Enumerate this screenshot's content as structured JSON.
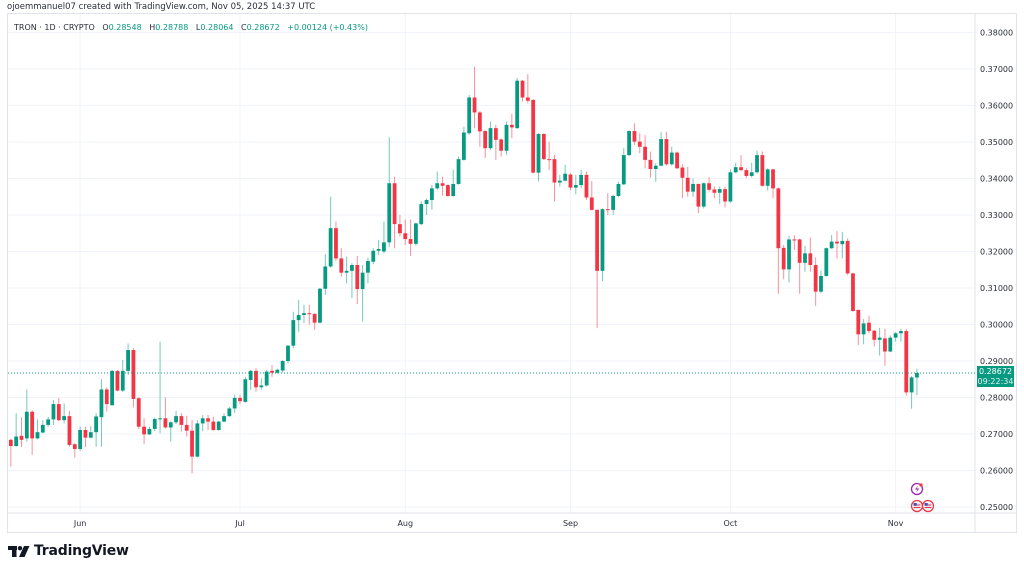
{
  "credit": "ojoemmanuel07 created with TradingView.com, Nov 05, 2025 14:37 UTC",
  "legend": {
    "symbol": "TRON · 1D · CRYPTO",
    "o_label": "O",
    "o_value": "0.28548",
    "h_label": "H",
    "h_value": "0.28788",
    "l_label": "L",
    "l_value": "0.28064",
    "c_label": "C",
    "c_value": "0.28672",
    "change": "+0.00124 (+0.43%)"
  },
  "last_price": {
    "price": "0.28672",
    "countdown": "09:22:34"
  },
  "logo_text": "TradingView",
  "icons": [
    "lightning-event-icon",
    "us-flag-event-icon",
    "us-flag-event-icon"
  ],
  "colors": {
    "up": "#089981",
    "down": "#F23645",
    "grid": "#f0f3fa",
    "event_purple": "#9c27b0",
    "event_red": "#F23645"
  },
  "chart_data": {
    "type": "candlestick",
    "symbol": "TRON",
    "interval": "1D",
    "grid": true,
    "ylim": [
      0.25,
      0.38
    ],
    "y_ticks": [
      "0.38000",
      "0.37000",
      "0.36000",
      "0.35000",
      "0.34000",
      "0.33000",
      "0.32000",
      "0.31000",
      "0.30000",
      "0.29000",
      "0.28000",
      "0.27000",
      "0.26000",
      "0.25000"
    ],
    "x_ticks": [
      {
        "label": "Jun",
        "date": "2025-06-01"
      },
      {
        "label": "Jul",
        "date": "2025-07-01"
      },
      {
        "label": "Aug",
        "date": "2025-08-01"
      },
      {
        "label": "Sep",
        "date": "2025-09-01"
      },
      {
        "label": "Oct",
        "date": "2025-10-01"
      },
      {
        "label": "Nov",
        "date": "2025-11-01"
      }
    ],
    "candle_fields": [
      "date",
      "open",
      "high",
      "low",
      "close"
    ],
    "candles": [
      [
        "2025-05-18",
        0.2697,
        0.2702,
        0.268,
        0.2684
      ],
      [
        "2025-05-19",
        0.2684,
        0.2687,
        0.2611,
        0.2667
      ],
      [
        "2025-05-20",
        0.2667,
        0.2757,
        0.2665,
        0.2693
      ],
      [
        "2025-05-21",
        0.2695,
        0.2746,
        0.2664,
        0.2684
      ],
      [
        "2025-05-22",
        0.2688,
        0.2822,
        0.2679,
        0.2761
      ],
      [
        "2025-05-23",
        0.2761,
        0.2765,
        0.2643,
        0.2688
      ],
      [
        "2025-05-24",
        0.2688,
        0.274,
        0.2685,
        0.2705
      ],
      [
        "2025-05-25",
        0.2704,
        0.2738,
        0.2702,
        0.2725
      ],
      [
        "2025-05-26",
        0.2725,
        0.2747,
        0.272,
        0.274
      ],
      [
        "2025-05-27",
        0.274,
        0.2793,
        0.2725,
        0.2782
      ],
      [
        "2025-05-28",
        0.2782,
        0.2799,
        0.2735,
        0.2738
      ],
      [
        "2025-05-29",
        0.2738,
        0.2784,
        0.2729,
        0.2749
      ],
      [
        "2025-05-30",
        0.2749,
        0.2763,
        0.2665,
        0.267
      ],
      [
        "2025-05-31",
        0.2672,
        0.2675,
        0.2635,
        0.2659
      ],
      [
        "2025-06-01",
        0.2659,
        0.272,
        0.2654,
        0.2711
      ],
      [
        "2025-06-02",
        0.2711,
        0.272,
        0.2664,
        0.269
      ],
      [
        "2025-06-03",
        0.269,
        0.2722,
        0.2688,
        0.2705
      ],
      [
        "2025-06-04",
        0.2705,
        0.2757,
        0.2665,
        0.2748
      ],
      [
        "2025-06-05",
        0.2746,
        0.285,
        0.2665,
        0.2822
      ],
      [
        "2025-06-06",
        0.2822,
        0.2828,
        0.2761,
        0.2782
      ],
      [
        "2025-06-07",
        0.2779,
        0.2875,
        0.2777,
        0.2873
      ],
      [
        "2025-06-08",
        0.2873,
        0.2875,
        0.2817,
        0.2819
      ],
      [
        "2025-06-09",
        0.2819,
        0.2903,
        0.2815,
        0.2873
      ],
      [
        "2025-06-10",
        0.2873,
        0.2948,
        0.2862,
        0.293
      ],
      [
        "2025-06-11",
        0.293,
        0.2935,
        0.2773,
        0.2796
      ],
      [
        "2025-06-12",
        0.2798,
        0.2801,
        0.2713,
        0.272
      ],
      [
        "2025-06-13",
        0.272,
        0.2743,
        0.2673,
        0.2699
      ],
      [
        "2025-06-14",
        0.2699,
        0.272,
        0.2697,
        0.2714
      ],
      [
        "2025-06-15",
        0.2714,
        0.2745,
        0.2708,
        0.2741
      ],
      [
        "2025-06-16",
        0.2741,
        0.2953,
        0.2702,
        0.2743
      ],
      [
        "2025-06-17",
        0.2743,
        0.28,
        0.2715,
        0.2718
      ],
      [
        "2025-06-18",
        0.2718,
        0.2735,
        0.2679,
        0.2732
      ],
      [
        "2025-06-19",
        0.2732,
        0.2763,
        0.2727,
        0.2749
      ],
      [
        "2025-06-20",
        0.2749,
        0.2757,
        0.2707,
        0.2725
      ],
      [
        "2025-06-21",
        0.2725,
        0.275,
        0.2693,
        0.2709
      ],
      [
        "2025-06-22",
        0.2709,
        0.2738,
        0.2592,
        0.2638
      ],
      [
        "2025-06-23",
        0.2638,
        0.2738,
        0.2636,
        0.2729
      ],
      [
        "2025-06-24",
        0.2729,
        0.2752,
        0.2708,
        0.2743
      ],
      [
        "2025-06-25",
        0.2743,
        0.2752,
        0.2711,
        0.2734
      ],
      [
        "2025-06-26",
        0.2734,
        0.2747,
        0.2709,
        0.2711
      ],
      [
        "2025-06-27",
        0.2711,
        0.2736,
        0.2709,
        0.2734
      ],
      [
        "2025-06-28",
        0.2734,
        0.2757,
        0.2732,
        0.2749
      ],
      [
        "2025-06-29",
        0.2749,
        0.2774,
        0.2747,
        0.277
      ],
      [
        "2025-06-30",
        0.277,
        0.2808,
        0.2758,
        0.2799
      ],
      [
        "2025-07-01",
        0.2799,
        0.2807,
        0.2782,
        0.279
      ],
      [
        "2025-07-02",
        0.2788,
        0.2857,
        0.2786,
        0.285
      ],
      [
        "2025-07-03",
        0.2848,
        0.2876,
        0.2821,
        0.2873
      ],
      [
        "2025-07-04",
        0.2873,
        0.288,
        0.2816,
        0.2828
      ],
      [
        "2025-07-05",
        0.2828,
        0.2853,
        0.2821,
        0.2833
      ],
      [
        "2025-07-06",
        0.2833,
        0.2876,
        0.283,
        0.2871
      ],
      [
        "2025-07-07",
        0.2873,
        0.2889,
        0.2857,
        0.2868
      ],
      [
        "2025-07-08",
        0.2868,
        0.2879,
        0.2866,
        0.2876
      ],
      [
        "2025-07-09",
        0.2874,
        0.2902,
        0.2868,
        0.29
      ],
      [
        "2025-07-10",
        0.29,
        0.2944,
        0.2894,
        0.2942
      ],
      [
        "2025-07-11",
        0.2942,
        0.3035,
        0.2935,
        0.3012
      ],
      [
        "2025-07-12",
        0.3012,
        0.3067,
        0.298,
        0.3026
      ],
      [
        "2025-07-13",
        0.3026,
        0.3054,
        0.3004,
        0.3031
      ],
      [
        "2025-07-14",
        0.3031,
        0.3054,
        0.3,
        0.3029
      ],
      [
        "2025-07-15",
        0.3029,
        0.3031,
        0.2985,
        0.3005
      ],
      [
        "2025-07-16",
        0.3005,
        0.31,
        0.3003,
        0.3098
      ],
      [
        "2025-07-17",
        0.3098,
        0.3193,
        0.3081,
        0.3159
      ],
      [
        "2025-07-18",
        0.3159,
        0.335,
        0.3155,
        0.3264
      ],
      [
        "2025-07-19",
        0.3264,
        0.3282,
        0.3174,
        0.3181
      ],
      [
        "2025-07-20",
        0.3181,
        0.3209,
        0.3131,
        0.3142
      ],
      [
        "2025-07-21",
        0.3142,
        0.3186,
        0.3113,
        0.3147
      ],
      [
        "2025-07-22",
        0.3147,
        0.3168,
        0.3072,
        0.3163
      ],
      [
        "2025-07-23",
        0.3163,
        0.3188,
        0.3056,
        0.3097
      ],
      [
        "2025-07-24",
        0.3097,
        0.3163,
        0.3008,
        0.3142
      ],
      [
        "2025-07-25",
        0.3142,
        0.3183,
        0.3113,
        0.3174
      ],
      [
        "2025-07-26",
        0.3172,
        0.3209,
        0.3165,
        0.3202
      ],
      [
        "2025-07-27",
        0.3202,
        0.3232,
        0.3191,
        0.3207
      ],
      [
        "2025-07-28",
        0.32,
        0.3282,
        0.3195,
        0.3225
      ],
      [
        "2025-07-29",
        0.3225,
        0.3513,
        0.3213,
        0.3387
      ],
      [
        "2025-07-30",
        0.3387,
        0.3405,
        0.3209,
        0.3275
      ],
      [
        "2025-07-31",
        0.3275,
        0.33,
        0.3241,
        0.325
      ],
      [
        "2025-08-01",
        0.325,
        0.3288,
        0.3218,
        0.3234
      ],
      [
        "2025-08-02",
        0.3234,
        0.3288,
        0.3188,
        0.3221
      ],
      [
        "2025-08-03",
        0.3221,
        0.3279,
        0.3216,
        0.3277
      ],
      [
        "2025-08-04",
        0.3275,
        0.3337,
        0.3272,
        0.333
      ],
      [
        "2025-08-05",
        0.333,
        0.3345,
        0.33,
        0.3341
      ],
      [
        "2025-08-06",
        0.3341,
        0.3382,
        0.3314,
        0.3373
      ],
      [
        "2025-08-07",
        0.3373,
        0.3419,
        0.3369,
        0.3387
      ],
      [
        "2025-08-08",
        0.3387,
        0.3405,
        0.3353,
        0.338
      ],
      [
        "2025-08-09",
        0.3382,
        0.3384,
        0.335,
        0.3352
      ],
      [
        "2025-08-10",
        0.3352,
        0.3425,
        0.335,
        0.3385
      ],
      [
        "2025-08-11",
        0.3385,
        0.346,
        0.3383,
        0.3453
      ],
      [
        "2025-08-12",
        0.3451,
        0.3542,
        0.3449,
        0.3526
      ],
      [
        "2025-08-13",
        0.3524,
        0.3629,
        0.352,
        0.3622
      ],
      [
        "2025-08-14",
        0.3622,
        0.3706,
        0.3538,
        0.3581
      ],
      [
        "2025-08-15",
        0.3581,
        0.3585,
        0.3487,
        0.3529
      ],
      [
        "2025-08-16",
        0.353,
        0.3532,
        0.3456,
        0.3483
      ],
      [
        "2025-08-17",
        0.3483,
        0.3556,
        0.3478,
        0.3538
      ],
      [
        "2025-08-18",
        0.3538,
        0.3547,
        0.3451,
        0.3506
      ],
      [
        "2025-08-19",
        0.3507,
        0.351,
        0.346,
        0.3476
      ],
      [
        "2025-08-20",
        0.3476,
        0.3556,
        0.3465,
        0.3547
      ],
      [
        "2025-08-21",
        0.3547,
        0.3577,
        0.351,
        0.354
      ],
      [
        "2025-08-22",
        0.3538,
        0.3675,
        0.3536,
        0.3668
      ],
      [
        "2025-08-23",
        0.3668,
        0.367,
        0.3611,
        0.3622
      ],
      [
        "2025-08-24",
        0.3622,
        0.3686,
        0.3606,
        0.3613
      ],
      [
        "2025-08-25",
        0.3615,
        0.3618,
        0.3414,
        0.3416
      ],
      [
        "2025-08-26",
        0.3416,
        0.3524,
        0.3392,
        0.3522
      ],
      [
        "2025-08-27",
        0.3522,
        0.3524,
        0.3451,
        0.3453
      ],
      [
        "2025-08-28",
        0.3453,
        0.3501,
        0.3424,
        0.3451
      ],
      [
        "2025-08-29",
        0.3453,
        0.3465,
        0.3337,
        0.3389
      ],
      [
        "2025-08-30",
        0.3389,
        0.341,
        0.3378,
        0.3394
      ],
      [
        "2025-08-31",
        0.3394,
        0.3437,
        0.3392,
        0.3413
      ],
      [
        "2025-09-01",
        0.3411,
        0.3414,
        0.3368,
        0.3375
      ],
      [
        "2025-09-02",
        0.3375,
        0.341,
        0.3357,
        0.3382
      ],
      [
        "2025-09-03",
        0.3382,
        0.3423,
        0.3373,
        0.341
      ],
      [
        "2025-09-04",
        0.341,
        0.3419,
        0.3341,
        0.3348
      ],
      [
        "2025-09-05",
        0.3348,
        0.3393,
        0.3312,
        0.3314
      ],
      [
        "2025-09-06",
        0.3314,
        0.3316,
        0.299,
        0.3147
      ],
      [
        "2025-09-07",
        0.3147,
        0.3318,
        0.3119,
        0.3316
      ],
      [
        "2025-09-08",
        0.3316,
        0.336,
        0.33,
        0.3314
      ],
      [
        "2025-09-09",
        0.3314,
        0.3355,
        0.33,
        0.3352
      ],
      [
        "2025-09-10",
        0.3352,
        0.3391,
        0.335,
        0.3385
      ],
      [
        "2025-09-11",
        0.3384,
        0.3483,
        0.3382,
        0.3464
      ],
      [
        "2025-09-12",
        0.3464,
        0.3532,
        0.3462,
        0.353
      ],
      [
        "2025-09-13",
        0.353,
        0.3551,
        0.3492,
        0.3501
      ],
      [
        "2025-09-14",
        0.3501,
        0.3524,
        0.3469,
        0.3487
      ],
      [
        "2025-09-15",
        0.3487,
        0.3519,
        0.3428,
        0.3451
      ],
      [
        "2025-09-16",
        0.3451,
        0.3474,
        0.3402,
        0.3426
      ],
      [
        "2025-09-17",
        0.3426,
        0.3442,
        0.3391,
        0.3435
      ],
      [
        "2025-09-18",
        0.3435,
        0.3527,
        0.3433,
        0.3508
      ],
      [
        "2025-09-19",
        0.3508,
        0.3528,
        0.3435,
        0.3439
      ],
      [
        "2025-09-20",
        0.3439,
        0.3487,
        0.3435,
        0.3471
      ],
      [
        "2025-09-21",
        0.3471,
        0.3474,
        0.3426,
        0.3428
      ],
      [
        "2025-09-22",
        0.343,
        0.3439,
        0.3346,
        0.3402
      ],
      [
        "2025-09-23",
        0.3402,
        0.3432,
        0.335,
        0.3364
      ],
      [
        "2025-09-24",
        0.3364,
        0.34,
        0.335,
        0.3385
      ],
      [
        "2025-09-25",
        0.3385,
        0.3386,
        0.3305,
        0.3323
      ],
      [
        "2025-09-26",
        0.3323,
        0.3389,
        0.3318,
        0.3387
      ],
      [
        "2025-09-27",
        0.3387,
        0.3403,
        0.3364,
        0.3369
      ],
      [
        "2025-09-28",
        0.337,
        0.3378,
        0.3346,
        0.3361
      ],
      [
        "2025-09-29",
        0.3361,
        0.3378,
        0.333,
        0.3371
      ],
      [
        "2025-09-30",
        0.3371,
        0.3378,
        0.3321,
        0.3337
      ],
      [
        "2025-10-01",
        0.3337,
        0.3425,
        0.3334,
        0.3417
      ],
      [
        "2025-10-02",
        0.3417,
        0.3443,
        0.3414,
        0.3431
      ],
      [
        "2025-10-03",
        0.3431,
        0.3464,
        0.342,
        0.3423
      ],
      [
        "2025-10-04",
        0.3423,
        0.3428,
        0.3401,
        0.3407
      ],
      [
        "2025-10-05",
        0.3407,
        0.3443,
        0.3403,
        0.3417
      ],
      [
        "2025-10-06",
        0.3417,
        0.3476,
        0.3414,
        0.3464
      ],
      [
        "2025-10-07",
        0.3464,
        0.3474,
        0.3378,
        0.338
      ],
      [
        "2025-10-08",
        0.338,
        0.3428,
        0.3367,
        0.3425
      ],
      [
        "2025-10-09",
        0.3425,
        0.3427,
        0.3346,
        0.3373
      ],
      [
        "2025-10-10",
        0.3373,
        0.3375,
        0.3084,
        0.3209
      ],
      [
        "2025-10-11",
        0.321,
        0.3218,
        0.3124,
        0.3151
      ],
      [
        "2025-10-12",
        0.3151,
        0.3242,
        0.3115,
        0.3233
      ],
      [
        "2025-10-13",
        0.3233,
        0.3245,
        0.3204,
        0.3232
      ],
      [
        "2025-10-14",
        0.3233,
        0.3235,
        0.3084,
        0.3169
      ],
      [
        "2025-10-15",
        0.3169,
        0.3215,
        0.3145,
        0.3195
      ],
      [
        "2025-10-16",
        0.3195,
        0.3239,
        0.3145,
        0.3163
      ],
      [
        "2025-10-17",
        0.3163,
        0.3184,
        0.3051,
        0.309
      ],
      [
        "2025-10-18",
        0.309,
        0.3148,
        0.3086,
        0.3133
      ],
      [
        "2025-10-19",
        0.3133,
        0.3211,
        0.3131,
        0.3209
      ],
      [
        "2025-10-20",
        0.3209,
        0.3245,
        0.3207,
        0.3227
      ],
      [
        "2025-10-21",
        0.3227,
        0.3256,
        0.3181,
        0.3222
      ],
      [
        "2025-10-22",
        0.322,
        0.3254,
        0.3181,
        0.3229
      ],
      [
        "2025-10-23",
        0.3229,
        0.3236,
        0.3136,
        0.314
      ],
      [
        "2025-10-24",
        0.314,
        0.3142,
        0.3035,
        0.3037
      ],
      [
        "2025-10-25",
        0.304,
        0.3041,
        0.2944,
        0.2973
      ],
      [
        "2025-10-26",
        0.2973,
        0.3015,
        0.2946,
        0.3003
      ],
      [
        "2025-10-27",
        0.3005,
        0.3024,
        0.2976,
        0.2982
      ],
      [
        "2025-10-28",
        0.2983,
        0.2985,
        0.294,
        0.2958
      ],
      [
        "2025-10-29",
        0.2958,
        0.2991,
        0.2915,
        0.2964
      ],
      [
        "2025-10-30",
        0.2962,
        0.2988,
        0.2887,
        0.2926
      ],
      [
        "2025-10-31",
        0.2926,
        0.297,
        0.2924,
        0.2964
      ],
      [
        "2025-11-01",
        0.2964,
        0.2979,
        0.2953,
        0.2976
      ],
      [
        "2025-11-02",
        0.2976,
        0.2988,
        0.2953,
        0.2982
      ],
      [
        "2025-11-03",
        0.2982,
        0.2988,
        0.2805,
        0.2814
      ],
      [
        "2025-11-04",
        0.2814,
        0.2859,
        0.2769,
        0.2855
      ],
      [
        "2025-11-05",
        0.28548,
        0.28788,
        0.28064,
        0.28672
      ]
    ],
    "last_close": 0.28672
  }
}
